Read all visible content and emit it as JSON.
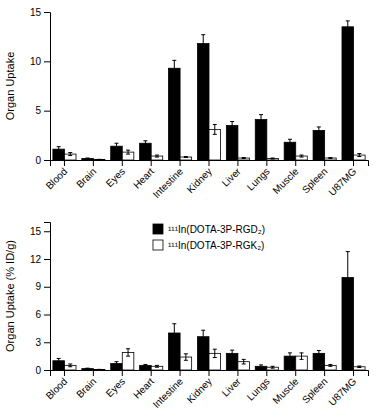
{
  "chart_data": [
    {
      "type": "bar",
      "categories": [
        "Blood",
        "Brain",
        "Eyes",
        "Heart",
        "Intestine",
        "Kidney",
        "Liver",
        "Lungs",
        "Muscle",
        "Spleen",
        "U87MG"
      ],
      "series": [
        {
          "color": "#000000",
          "values": [
            1.1,
            0.15,
            1.4,
            1.7,
            9.3,
            11.8,
            3.5,
            4.1,
            1.8,
            3.0,
            13.5
          ],
          "errors": [
            0.25,
            0.05,
            0.3,
            0.25,
            0.8,
            0.9,
            0.4,
            0.5,
            0.3,
            0.35,
            0.6
          ]
        },
        {
          "color": "#ffffff",
          "values": [
            0.6,
            0.05,
            0.8,
            0.4,
            0.3,
            3.1,
            0.2,
            0.15,
            0.4,
            0.2,
            0.5
          ],
          "errors": [
            0.15,
            0.02,
            0.2,
            0.1,
            0.05,
            0.5,
            0.05,
            0.05,
            0.1,
            0.05,
            0.15
          ]
        }
      ],
      "ylabel": "Organ Uptake",
      "ylim": [
        0,
        15
      ],
      "yticks": [
        0,
        5,
        10,
        15
      ]
    },
    {
      "type": "bar",
      "categories": [
        "Blood",
        "Brain",
        "Eyes",
        "Heart",
        "Intestine",
        "Kidney",
        "Liver",
        "Lungs",
        "Muscle",
        "Spleen",
        "U87MG"
      ],
      "series": [
        {
          "name": "¹¹¹In(DOTA-3P-RGD₂)",
          "color": "#000000",
          "values": [
            1.0,
            0.15,
            0.7,
            0.5,
            4.0,
            3.6,
            1.8,
            0.4,
            1.5,
            1.8,
            10.0
          ],
          "errors": [
            0.25,
            0.05,
            0.2,
            0.1,
            1.0,
            0.7,
            0.35,
            0.15,
            0.35,
            0.3,
            2.8
          ]
        },
        {
          "name": "¹¹¹In(DOTA-3P-RGK₂)",
          "color": "#ffffff",
          "values": [
            0.5,
            0.05,
            1.9,
            0.4,
            1.4,
            1.8,
            0.9,
            0.3,
            1.5,
            0.5,
            0.35
          ],
          "errors": [
            0.15,
            0.02,
            0.4,
            0.1,
            0.35,
            0.45,
            0.25,
            0.1,
            0.35,
            0.1,
            0.08
          ]
        }
      ],
      "ylabel": "Organ Uptake (% ID/g)",
      "ylim": [
        0,
        16
      ],
      "yticks": [
        0,
        3,
        6,
        9,
        12,
        15
      ],
      "legend": "upper center"
    }
  ]
}
